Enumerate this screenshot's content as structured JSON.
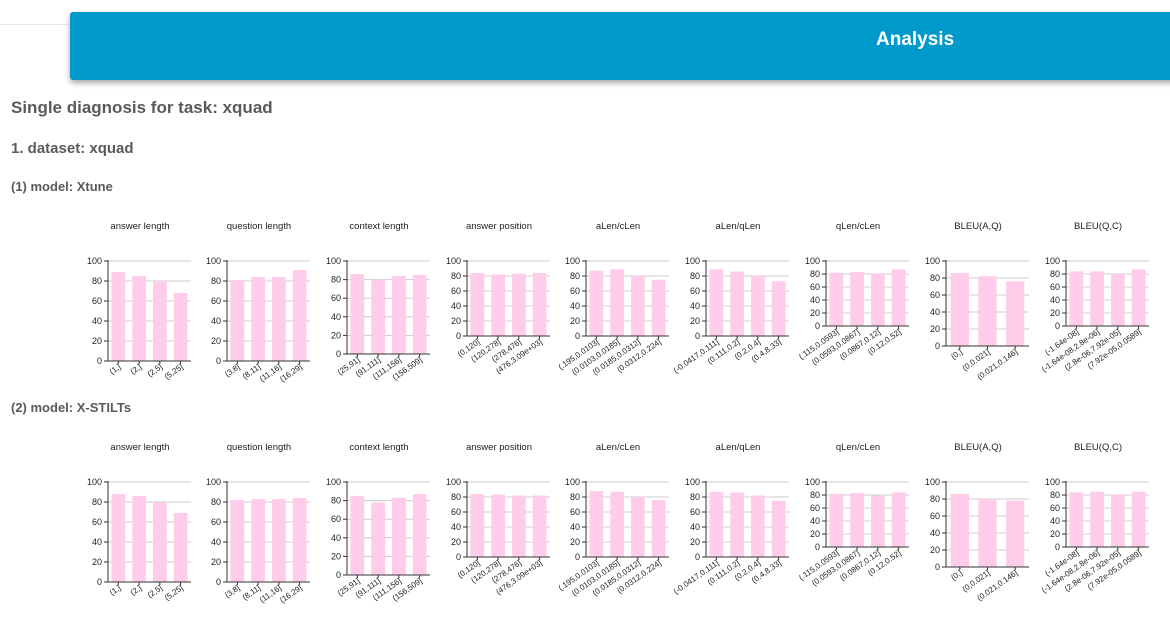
{
  "header": {
    "title": "Analysis"
  },
  "page": {
    "task_heading": "Single diagnosis for task: xquad",
    "dataset_heading": "1. dataset: xquad"
  },
  "colors": {
    "header_bg": "#0099cc",
    "bar": "#ffccea",
    "axis": "#333333",
    "grid": "#cccccc"
  },
  "chart_data": [
    {
      "model": "(1) model: Xtune",
      "charts": [
        {
          "type": "bar",
          "title": "answer length",
          "ylim": [
            0,
            100
          ],
          "categories": [
            "(1,]",
            "(2,]",
            "(2,5]",
            "(5,25]"
          ],
          "values": [
            89,
            85,
            80,
            68
          ]
        },
        {
          "type": "bar",
          "title": "question length",
          "ylim": [
            0,
            100
          ],
          "categories": [
            "(3,8]",
            "(8,11]",
            "(11,16]",
            "(16,29]"
          ],
          "values": [
            81,
            84,
            84,
            91
          ]
        },
        {
          "type": "bar",
          "title": "context length",
          "ylim": [
            0,
            100
          ],
          "categories": [
            "(25,91]",
            "(91,111]",
            "(111,156]",
            "(156,509]"
          ],
          "values": [
            86,
            80,
            84,
            85
          ]
        },
        {
          "type": "bar",
          "title": "answer position",
          "ylim": [
            0,
            100
          ],
          "categories": [
            "(0,120]",
            "(120,278]",
            "(278,476]",
            "(476,3.09e+03]"
          ],
          "values": [
            84,
            82,
            83,
            84
          ]
        },
        {
          "type": "bar",
          "title": "aLen/cLen",
          "ylim": [
            0,
            100
          ],
          "categories": [
            "(.195,0.0103]",
            "(0.0103,0.0185]",
            "(0.0185,0.0312]",
            "(0.0312,0.224]"
          ],
          "values": [
            87,
            89,
            80,
            75
          ]
        },
        {
          "type": "bar",
          "title": "aLen/qLen",
          "ylim": [
            0,
            100
          ],
          "categories": [
            "(-0.0417,0.111]",
            "(0.111,0.2]",
            "(0.2,0.4]",
            "(0.4,8.33]"
          ],
          "values": [
            89,
            86,
            80,
            73
          ]
        },
        {
          "type": "bar",
          "title": "qLen/cLen",
          "ylim": [
            0,
            100
          ],
          "categories": [
            "(.115,0.0593]",
            "(0.0593,0.0867]",
            "(0.0867,0.12]",
            "(0.12,0.52]"
          ],
          "values": [
            82,
            83,
            81,
            87
          ]
        },
        {
          "type": "bar",
          "title": "BLEU(A,Q)",
          "ylim": [
            0,
            100
          ],
          "categories": [
            "(0,]",
            "(0,0.021]",
            "(0.021,0.146]"
          ],
          "values": [
            86,
            82,
            76
          ]
        },
        {
          "type": "bar",
          "title": "BLEU(Q,C)",
          "ylim": [
            0,
            100
          ],
          "categories": [
            "(-1.64e-08]",
            "(-1.64e-08,2.8e-06]",
            "(2.8e-06,7.92e-05]",
            "(7.92e-05,0.0589]"
          ],
          "values": [
            84,
            84,
            80,
            87
          ]
        }
      ]
    },
    {
      "model": "(2) model: X-STILTs",
      "charts": [
        {
          "type": "bar",
          "title": "answer length",
          "ylim": [
            0,
            100
          ],
          "categories": [
            "(1,]",
            "(2,]",
            "(2,5]",
            "(5,25]"
          ],
          "values": [
            88,
            86,
            80,
            69
          ]
        },
        {
          "type": "bar",
          "title": "question length",
          "ylim": [
            0,
            100
          ],
          "categories": [
            "(3,8]",
            "(8,11]",
            "(11,16]",
            "(16,29]"
          ],
          "values": [
            82,
            83,
            83,
            84
          ]
        },
        {
          "type": "bar",
          "title": "context length",
          "ylim": [
            0,
            100
          ],
          "categories": [
            "(25,91]",
            "(91,111]",
            "(111,156]",
            "(156,509]"
          ],
          "values": [
            85,
            78,
            83,
            87
          ]
        },
        {
          "type": "bar",
          "title": "answer position",
          "ylim": [
            0,
            100
          ],
          "categories": [
            "(0,120]",
            "(120,278]",
            "(278,476]",
            "(476,3.09e+03]"
          ],
          "values": [
            84,
            83,
            82,
            82
          ]
        },
        {
          "type": "bar",
          "title": "aLen/cLen",
          "ylim": [
            0,
            100
          ],
          "categories": [
            "(.195,0.0103]",
            "(0.0103,0.0185]",
            "(0.0185,0.0312]",
            "(0.0312,0.224]"
          ],
          "values": [
            88,
            87,
            80,
            76
          ]
        },
        {
          "type": "bar",
          "title": "aLen/qLen",
          "ylim": [
            0,
            100
          ],
          "categories": [
            "(-0.0417,0.111]",
            "(0.111,0.2]",
            "(0.2,0.4]",
            "(0.4,8.33]"
          ],
          "values": [
            87,
            86,
            82,
            75
          ]
        },
        {
          "type": "bar",
          "title": "qLen/cLen",
          "ylim": [
            0,
            100
          ],
          "categories": [
            "(.115,0.0593]",
            "(0.0593,0.0867]",
            "(0.0867,0.12]",
            "(0.12,0.52]"
          ],
          "values": [
            82,
            83,
            79,
            84
          ]
        },
        {
          "type": "bar",
          "title": "BLEU(A,Q)",
          "ylim": [
            0,
            100
          ],
          "categories": [
            "(0,]",
            "(0,0.021]",
            "(0.021,0.146]"
          ],
          "values": [
            86,
            80,
            78
          ]
        },
        {
          "type": "bar",
          "title": "BLEU(Q,C)",
          "ylim": [
            0,
            100
          ],
          "categories": [
            "(-1.64e-08]",
            "(-1.64e-08,2.8e-06]",
            "(2.8e-06,7.92e-05]",
            "(7.92e-05,0.0589]"
          ],
          "values": [
            84,
            85,
            81,
            85
          ]
        }
      ]
    }
  ]
}
